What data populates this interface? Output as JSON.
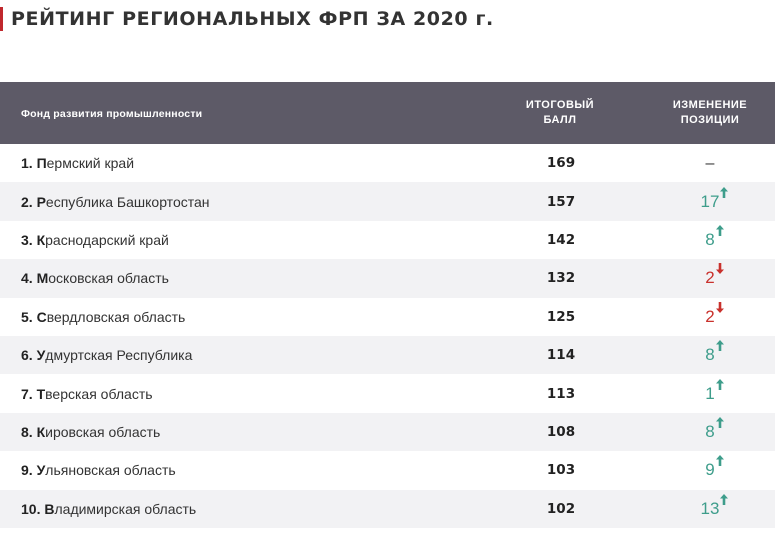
{
  "title": "РЕЙТИНГ РЕГИОНАЛЬНЫХ ФРП ЗА 2020 г.",
  "header": {
    "name": "Фонд развития промышленности",
    "score": "ИТОГОВЫЙ\nБАЛЛ",
    "change": "ИЗМЕНЕНИЕ\nПОЗИЦИИ"
  },
  "colors": {
    "up": "#3e9d8b",
    "down": "#c9312c",
    "header_bg": "#5d5a67",
    "accent": "#c0282d"
  },
  "rows": [
    {
      "num": "1. ",
      "initial": "П",
      "rest": "ермский край",
      "score": "169",
      "change": "–",
      "dir": "none"
    },
    {
      "num": "2. ",
      "initial": "Р",
      "rest": "еспублика Башкортостан",
      "score": "157",
      "change": "17",
      "dir": "up"
    },
    {
      "num": "3. ",
      "initial": "К",
      "rest": "раснодарский край",
      "score": "142",
      "change": "8",
      "dir": "up"
    },
    {
      "num": "4. ",
      "initial": "М",
      "rest": "осковская область",
      "score": "132",
      "change": "2",
      "dir": "down"
    },
    {
      "num": "5. ",
      "initial": "С",
      "rest": "вердловская область",
      "score": "125",
      "change": "2",
      "dir": "down"
    },
    {
      "num": "6. ",
      "initial": "У",
      "rest": "дмуртская Республика",
      "score": "114",
      "change": "8",
      "dir": "up"
    },
    {
      "num": "7. ",
      "initial": "Т",
      "rest": "верская область",
      "score": "113",
      "change": "1",
      "dir": "up"
    },
    {
      "num": "8. ",
      "initial": "К",
      "rest": "ировская область",
      "score": "108",
      "change": "8",
      "dir": "up"
    },
    {
      "num": "9. ",
      "initial": "У",
      "rest": "льяновская область",
      "score": "103",
      "change": "9",
      "dir": "up"
    },
    {
      "num": "10. ",
      "initial": "В",
      "rest": "ладимирская область",
      "score": "102",
      "change": "13",
      "dir": "up"
    }
  ]
}
